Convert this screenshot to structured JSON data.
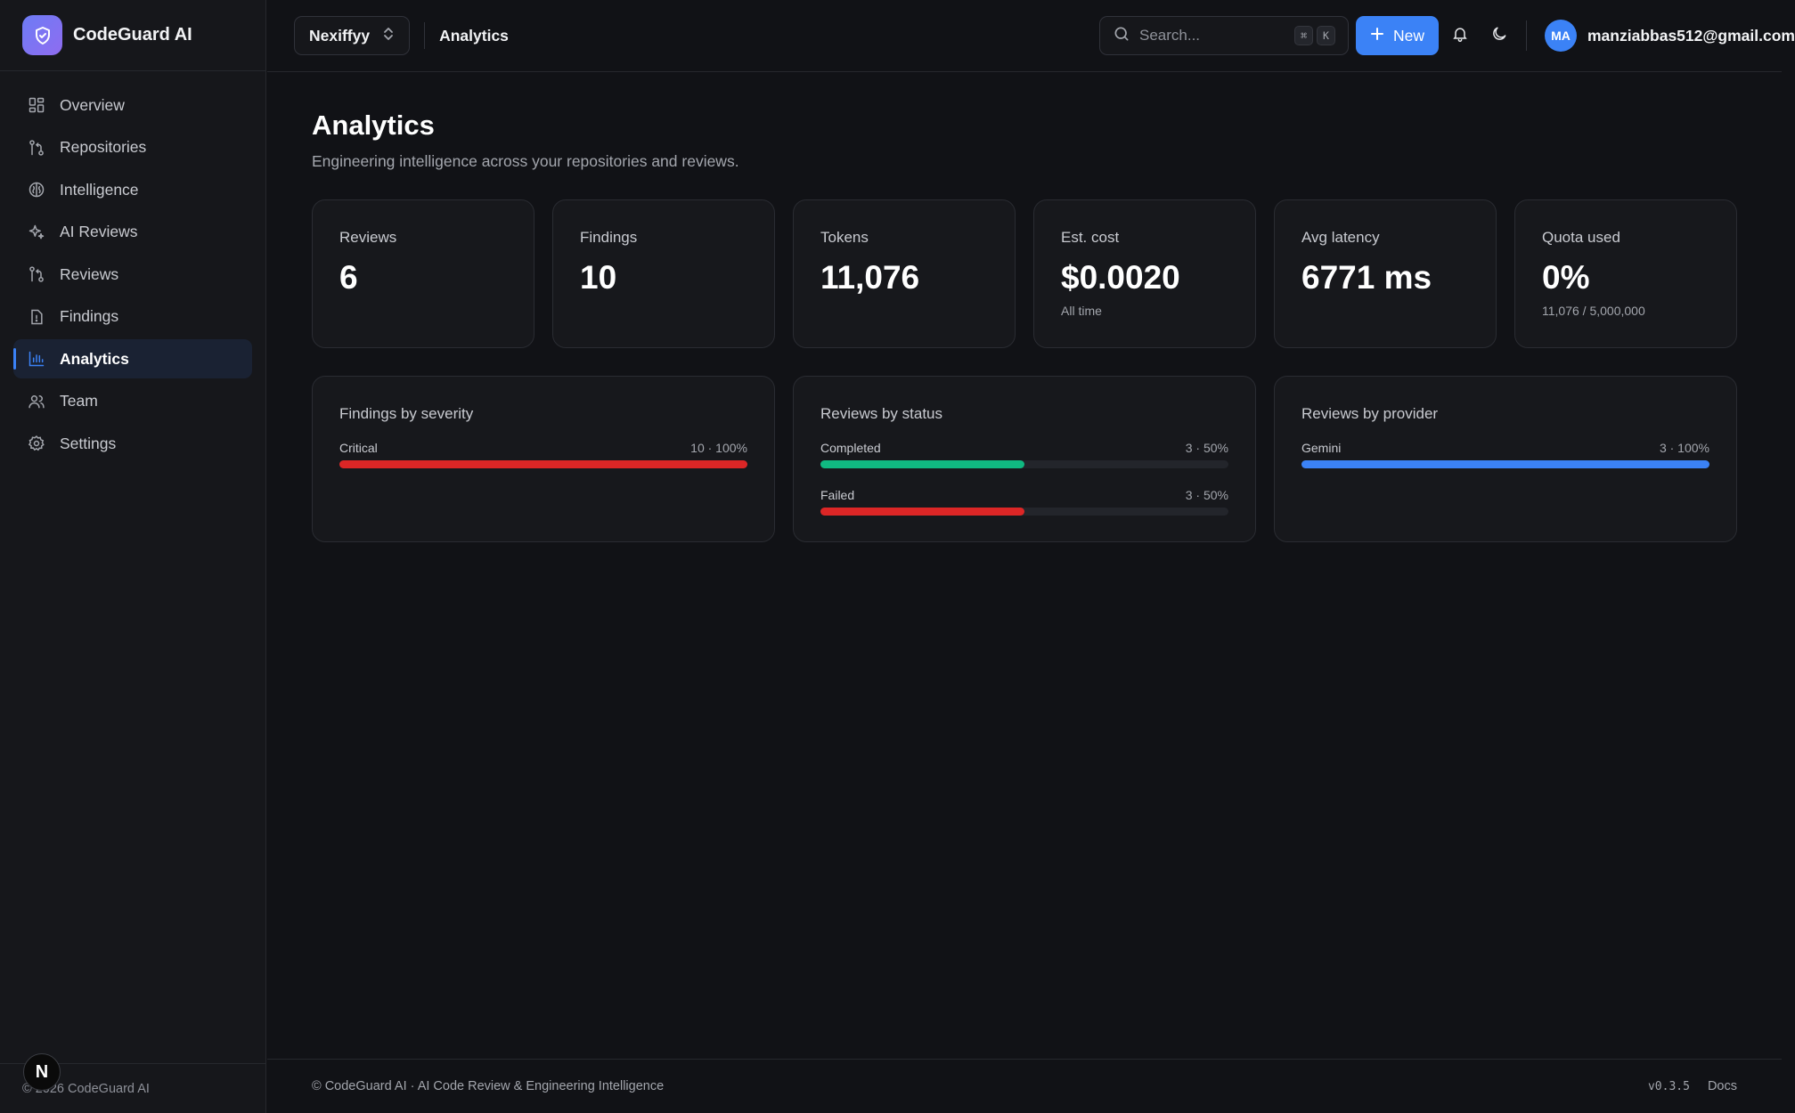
{
  "brand": {
    "name": "CodeGuard AI"
  },
  "sidebar": {
    "items": [
      {
        "label": "Overview",
        "icon": "grid-icon",
        "active": false
      },
      {
        "label": "Repositories",
        "icon": "git-branch-icon",
        "active": false
      },
      {
        "label": "Intelligence",
        "icon": "brain-icon",
        "active": false
      },
      {
        "label": "AI Reviews",
        "icon": "sparkles-icon",
        "active": false
      },
      {
        "label": "Reviews",
        "icon": "git-pull-request-icon",
        "active": false
      },
      {
        "label": "Findings",
        "icon": "file-alert-icon",
        "active": false
      },
      {
        "label": "Analytics",
        "icon": "bar-chart-icon",
        "active": true
      },
      {
        "label": "Team",
        "icon": "users-icon",
        "active": false
      },
      {
        "label": "Settings",
        "icon": "gear-icon",
        "active": false
      }
    ],
    "footer": "© 2026 CodeGuard AI",
    "badge": "N"
  },
  "topbar": {
    "org": "Nexiffyy",
    "breadcrumb": "Analytics",
    "search_placeholder": "Search...",
    "kbd_cmd": "⌘",
    "kbd_k": "K",
    "new_label": "New",
    "avatar_initials": "MA",
    "user_email": "manziabbas512@gmail.com"
  },
  "page": {
    "title": "Analytics",
    "subtitle": "Engineering intelligence across your repositories and reviews."
  },
  "stats": [
    {
      "label": "Reviews",
      "value": "6",
      "sub": ""
    },
    {
      "label": "Findings",
      "value": "10",
      "sub": ""
    },
    {
      "label": "Tokens",
      "value": "11,076",
      "sub": ""
    },
    {
      "label": "Est. cost",
      "value": "$0.0020",
      "sub": "All time"
    },
    {
      "label": "Avg latency",
      "value": "6771 ms",
      "sub": ""
    },
    {
      "label": "Quota used",
      "value": "0%",
      "sub": "11,076 / 5,000,000"
    }
  ],
  "panels": [
    {
      "title": "Findings by severity",
      "bars": [
        {
          "label": "Critical",
          "value": "10 · 100%",
          "fraction": 1.0,
          "color": "#dc2626"
        }
      ]
    },
    {
      "title": "Reviews by status",
      "bars": [
        {
          "label": "Completed",
          "value": "3 · 50%",
          "fraction": 0.5,
          "color": "#10b981"
        },
        {
          "label": "Failed",
          "value": "3 · 50%",
          "fraction": 0.5,
          "color": "#dc2626"
        }
      ]
    },
    {
      "title": "Reviews by provider",
      "bars": [
        {
          "label": "Gemini",
          "value": "3 · 100%",
          "fraction": 1.0,
          "color": "#3b82f6"
        }
      ]
    }
  ],
  "footer": {
    "left": "© CodeGuard AI · AI Code Review & Engineering Intelligence",
    "version": "v0.3.5",
    "docs": "Docs"
  }
}
